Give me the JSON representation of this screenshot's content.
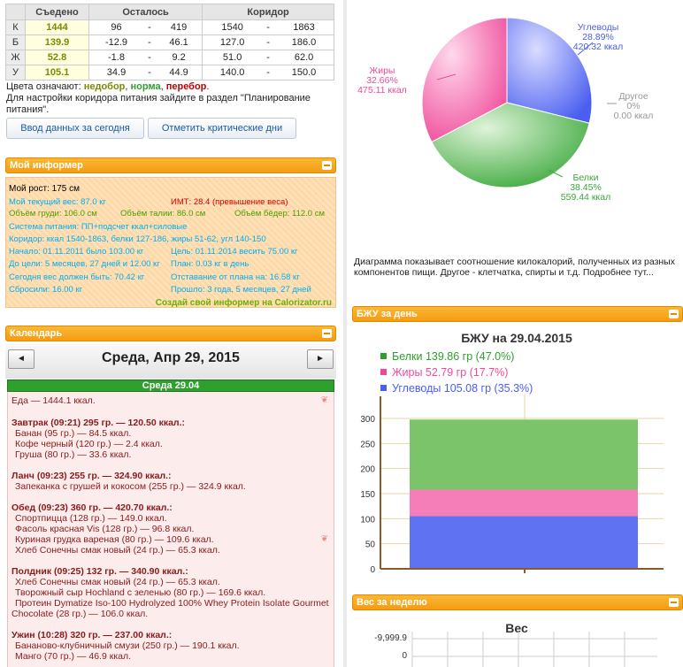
{
  "nutrition_table": {
    "headers": [
      "",
      "Съедено",
      "Осталось",
      "Коридор"
    ],
    "rows": [
      {
        "key": "К",
        "eaten": "1444",
        "left_from": "96",
        "left_to": "419",
        "range_from": "1540",
        "range_to": "1863"
      },
      {
        "key": "Б",
        "eaten": "139.9",
        "left_from": "-12.9",
        "left_to": "46.1",
        "range_from": "127.0",
        "range_to": "186.0"
      },
      {
        "key": "Ж",
        "eaten": "52.8",
        "left_from": "-1.8",
        "left_to": "9.2",
        "range_from": "51.0",
        "range_to": "62.0"
      },
      {
        "key": "У",
        "eaten": "105.1",
        "left_from": "34.9",
        "left_to": "44.9",
        "range_from": "140.0",
        "range_to": "150.0"
      }
    ],
    "dash": "-"
  },
  "colors_legend": {
    "prefix": "Цвета означают:",
    "under": "недобор",
    "norm": "норма",
    "over": "перебор",
    "sep": ",",
    "end": ".",
    "note": "Для настройки коридора питания зайдите в раздел \"Планирование питания\"."
  },
  "buttons": {
    "enter_today": "Ввод данных за сегодня",
    "critical_days": "Отметить критические дни"
  },
  "informer": {
    "title": "Мой информер",
    "height": "Мой рост: 175 см",
    "weight": "Мой текущий вес: 87.0 кг",
    "bmi": "ИМТ: 28.4 (превышение веса)",
    "chest": "Объём груди: 106.0 см",
    "waist": "Объём талии: 86.0 см",
    "hips": "Объём бёдер: 112.0 см",
    "system": "Система питания: ПП+подсчет ккал+силовые",
    "corridor": "Коридор: ккал 1540-1863, белки 127-186, жиры 51-62, угл 140-150",
    "start": "Начало: 01.11.2011 было 103.00 кг",
    "goal": "Цель: 01.11.2014 весить 75.00 кг",
    "to_goal": "До цели: 5 месяцев, 27 дней и 12.00 кг",
    "plan": "План: 0.03 кг в день",
    "should": "Сегодня вес должен быть: 70.42 кг",
    "behind": "Отставание от плана на: 16.58 кг",
    "lost": "Сбросили: 16.00 кг",
    "passed": "Прошло: 3 года, 5 месяцев, 27 дней",
    "create": "Создай свой информер на Calorizator.ru"
  },
  "calendar": {
    "title": "Календарь",
    "prev": "◄",
    "next": "►",
    "date": "Среда, Апр 29, 2015",
    "day_label": "Среда 29.04",
    "food_total": "Еда — 1444.1 ккал.",
    "meals": [
      {
        "header": "Завтрак (09:21) 295 гр. — 120.50 ккал.:",
        "items": [
          "Банан (95 гр.) — 84.5 ккал.",
          "Кофе черный (120 гр.) — 2.4 ккал.",
          "Груша (80 гр.) — 33.6 ккал."
        ]
      },
      {
        "header": "Ланч (09:23) 255 гр. — 324.90 ккал.:",
        "items": [
          "Запеканка с грушей и кокосом (255 гр.) — 324.9 ккал."
        ]
      },
      {
        "header": "Обед (09:23) 360 гр. — 420.70 ккал.:",
        "items": [
          "Спортпицца (128 гр.) — 149.0 ккал.",
          "Фасоль красная Vis (128 гр.) — 96.8 ккал.",
          "Куриная грудка вареная (80 гр.) — 109.6 ккал.",
          "Хлеб Сонечны смак новый (24 гр.) — 65.3 ккал."
        ]
      },
      {
        "header": "Полдник (09:25) 132 гр. — 340.90 ккал.:",
        "items": [
          "Хлеб Сонечны смак новый (24 гр.) — 65.3 ккал.",
          "Творожный сыр Hochland с зеленью (80 гр.) — 169.6 ккал.",
          "Протеин Dymatize Iso-100 Hydrolyzed 100% Whey Protein Isolate Gourmet",
          "Chocolate (28 гр.) — 106.0 ккал."
        ]
      },
      {
        "header": "Ужин (10:28) 320 гр. — 237.00 ккал.:",
        "items": [
          "Бананово-клубничный смузи (250 гр.) — 190.1 ккал.",
          "Манго (70 гр.) — 46.9 ккал."
        ]
      }
    ]
  },
  "pie": {
    "description": "Диаграмма показывает соотношение килокалорий, полученных из разных компонентов пищи. Другое - клетчатка, спирты и т.д. Подробнее тут...",
    "slices": [
      {
        "name": "Углеводы",
        "pct": "28.89%",
        "kcal": "420.32 ккал",
        "value": 28.89,
        "color": "#4a5ef0"
      },
      {
        "name": "Другое",
        "pct": "0%",
        "kcal": "0.00 ккал",
        "value": 0,
        "color": "#999999"
      },
      {
        "name": "Белки",
        "pct": "38.45%",
        "kcal": "559.44 ккал",
        "value": 38.45,
        "color": "#3aa83a"
      },
      {
        "name": "Жиры",
        "pct": "32.66%",
        "kcal": "475.11 ккал",
        "value": 32.66,
        "color": "#ef4a9a"
      }
    ]
  },
  "bju": {
    "widget_title": "БЖУ за день",
    "chart_title": "БЖУ на 29.04.2015",
    "legend": [
      {
        "label": "Белки 139.86 гр (47.0%)",
        "color": "#2e9e2e"
      },
      {
        "label": "Жиры 52.79 гр (17.7%)",
        "color": "#ef4a9a"
      },
      {
        "label": "Углеводы 105.08 гр (35.3%)",
        "color": "#4a5ef0"
      }
    ],
    "yticks": [
      "300",
      "250",
      "200",
      "150",
      "100",
      "50",
      "0"
    ]
  },
  "weight": {
    "widget_title": "Вес за неделю",
    "chart_title": "Вес",
    "yticks": [
      "-9,999.9",
      "0"
    ]
  },
  "chart_data": [
    {
      "type": "pie",
      "title": "",
      "categories": [
        "Углеводы",
        "Другое",
        "Белки",
        "Жиры"
      ],
      "values": [
        28.89,
        0,
        38.45,
        32.66
      ],
      "kcal": [
        420.32,
        0.0,
        559.44,
        475.11
      ]
    },
    {
      "type": "bar",
      "title": "БЖУ на 29.04.2015",
      "stacked": true,
      "categories": [
        ""
      ],
      "series": [
        {
          "name": "Углеводы",
          "values": [
            105.08
          ],
          "color": "#4a5ef0"
        },
        {
          "name": "Жиры",
          "values": [
            52.79
          ],
          "color": "#ef4a9a"
        },
        {
          "name": "Белки",
          "values": [
            139.86
          ],
          "color": "#3aa83a"
        }
      ],
      "ylim": [
        0,
        330
      ],
      "grid": true
    }
  ]
}
